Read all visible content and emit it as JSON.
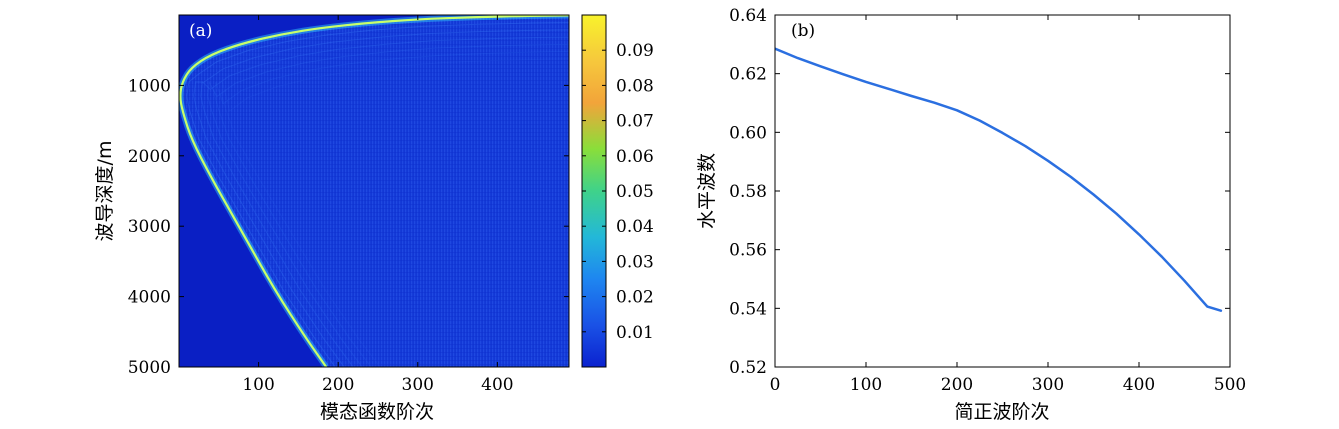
{
  "chart_data": [
    {
      "type": "heatmap",
      "panel_label": "(a)",
      "xlabel": "模态函数阶次",
      "ylabel": "波导深度/m",
      "xlim": [
        0,
        490
      ],
      "ylim": [
        0,
        5000
      ],
      "y_reversed": true,
      "xticks": [
        100,
        200,
        300,
        400
      ],
      "xtick_labels": [
        "100",
        "200",
        "300",
        "400"
      ],
      "yticks": [
        1000,
        2000,
        3000,
        4000,
        5000
      ],
      "ytick_labels": [
        "1000",
        "2000",
        "3000",
        "4000",
        "5000"
      ],
      "colorbar": {
        "range": [
          0,
          0.1
        ],
        "ticks": [
          0.01,
          0.02,
          0.03,
          0.04,
          0.05,
          0.06,
          0.07,
          0.08,
          0.09
        ],
        "tick_labels": [
          "0.01",
          "0.02",
          "0.03",
          "0.04",
          "0.05",
          "0.06",
          "0.07",
          "0.08",
          "0.09"
        ],
        "colormap": "jet"
      },
      "caustic_boundary": {
        "x": [
          185,
          160,
          120,
          80,
          40,
          15,
          4,
          1,
          4,
          15,
          40,
          80,
          130,
          180,
          240,
          300,
          370,
          440,
          490
        ],
        "y": [
          5000,
          4600,
          3900,
          3100,
          2300,
          1750,
          1350,
          1150,
          950,
          750,
          560,
          400,
          270,
          180,
          110,
          60,
          30,
          12,
          5
        ]
      },
      "background_color": "#1238d6",
      "outside_color": "#0a1fc4",
      "ridge_color": "#c8ff6a"
    },
    {
      "type": "line",
      "panel_label": "(b)",
      "xlabel": "简正波阶次",
      "ylabel": "水平波数",
      "xlim": [
        0,
        500
      ],
      "ylim": [
        0.52,
        0.64
      ],
      "xticks": [
        0,
        100,
        200,
        300,
        400,
        500
      ],
      "xtick_labels": [
        "0",
        "100",
        "200",
        "300",
        "400",
        "500"
      ],
      "yticks": [
        0.52,
        0.54,
        0.56,
        0.58,
        0.6,
        0.62,
        0.64
      ],
      "ytick_labels": [
        "0.52",
        "0.54",
        "0.56",
        "0.58",
        "0.60",
        "0.62",
        "0.64"
      ],
      "series": [
        {
          "color": "#2b6fe0",
          "x": [
            0,
            25,
            50,
            75,
            100,
            125,
            150,
            175,
            200,
            225,
            250,
            275,
            300,
            325,
            350,
            375,
            400,
            425,
            450,
            475,
            490
          ],
          "y": [
            0.6285,
            0.6253,
            0.6225,
            0.6198,
            0.6172,
            0.6148,
            0.6124,
            0.6101,
            0.6075,
            0.604,
            0.5998,
            0.5953,
            0.5903,
            0.5848,
            0.5788,
            0.5723,
            0.5652,
            0.5576,
            0.5494,
            0.5406,
            0.5392
          ]
        }
      ]
    }
  ]
}
